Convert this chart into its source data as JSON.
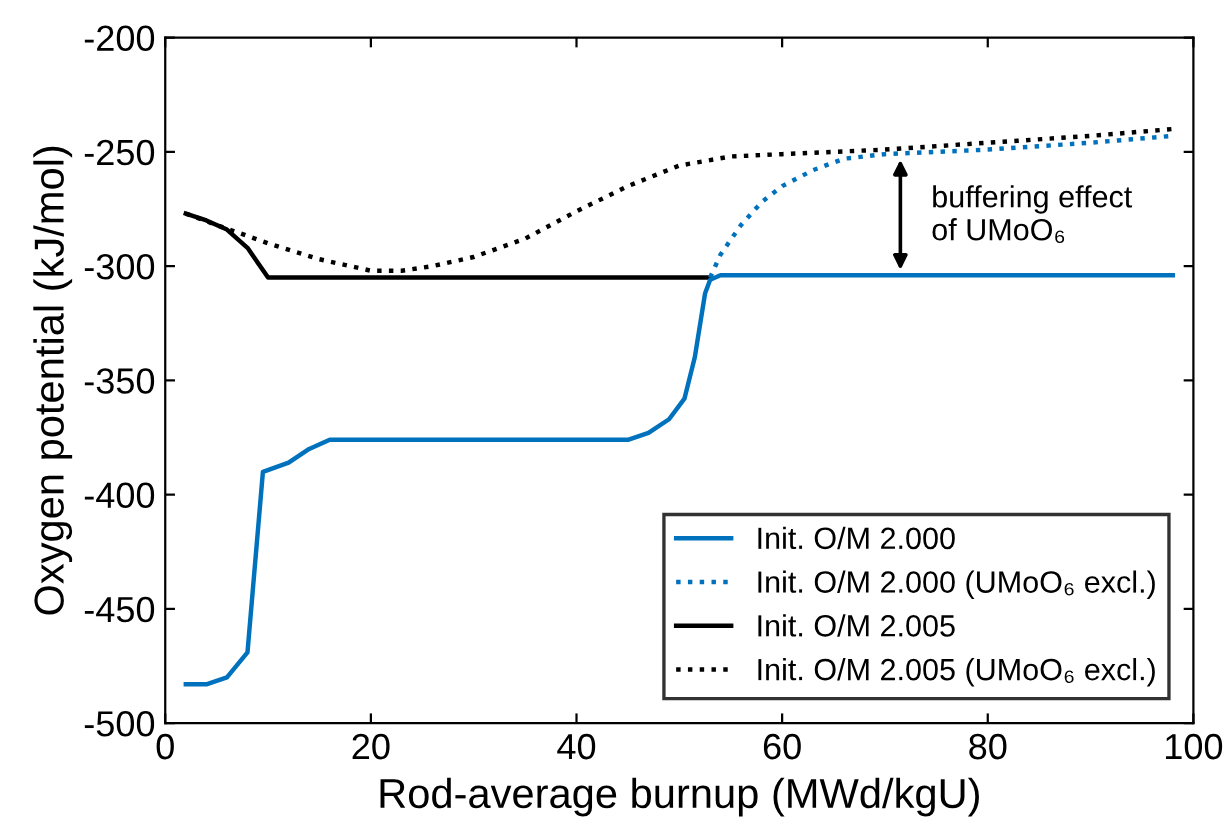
{
  "chart_data": {
    "type": "line",
    "xlabel": "Rod-average burnup (MWd/kgU)",
    "ylabel": "Oxygen potential (kJ/mol)",
    "xlim": [
      0,
      100
    ],
    "xticks": [
      0,
      20,
      40,
      60,
      80,
      100
    ],
    "ylim": [
      -500,
      -200
    ],
    "yticks": [
      -500,
      -450,
      -400,
      -350,
      -300,
      -250,
      -200
    ],
    "grid": false,
    "legend": "bottom right",
    "marker": "none",
    "series": [
      {
        "name": "Init. O/M 2.000",
        "color": "#0072bd",
        "line_style": "solid",
        "x": [
          2,
          4,
          6,
          8,
          9.5,
          12,
          14,
          16,
          45,
          47,
          49,
          50.5,
          51.5,
          52.5,
          53,
          54,
          98
        ],
        "values": [
          -483,
          -483,
          -480,
          -469,
          -390,
          -386,
          -380,
          -376,
          -376,
          -373,
          -367,
          -358,
          -340,
          -312,
          -306,
          -304,
          -304
        ]
      },
      {
        "name": "Init. O/M 2.000 (UMoO₆ excl.)",
        "color": "#0072bd",
        "line_style": "dotted",
        "x": [
          53,
          54,
          56,
          58,
          60,
          63,
          66,
          70,
          80,
          90,
          98
        ],
        "values": [
          -305,
          -295,
          -282,
          -272,
          -265,
          -258,
          -253,
          -251,
          -249,
          -246,
          -243
        ]
      },
      {
        "name": "Init. O/M 2.005",
        "color": "#000000",
        "line_style": "solid",
        "x": [
          2,
          4,
          6,
          8,
          10,
          53
        ],
        "values": [
          -277,
          -280,
          -284,
          -292,
          -305,
          -305
        ]
      },
      {
        "name": "Init. O/M 2.005 (UMoO₆ excl.)",
        "color": "#000000",
        "line_style": "dotted",
        "x": [
          2,
          5,
          10,
          15,
          20,
          23,
          26,
          30,
          35,
          40,
          45,
          50,
          55,
          60,
          70,
          80,
          90,
          98
        ],
        "values": [
          -277,
          -282,
          -290,
          -297,
          -302,
          -302,
          -300,
          -296,
          -288,
          -276,
          -265,
          -256,
          -252,
          -251,
          -249,
          -246,
          -243,
          -240
        ]
      }
    ],
    "annotations": [
      "buffering effect\nof UMoO₆"
    ]
  }
}
